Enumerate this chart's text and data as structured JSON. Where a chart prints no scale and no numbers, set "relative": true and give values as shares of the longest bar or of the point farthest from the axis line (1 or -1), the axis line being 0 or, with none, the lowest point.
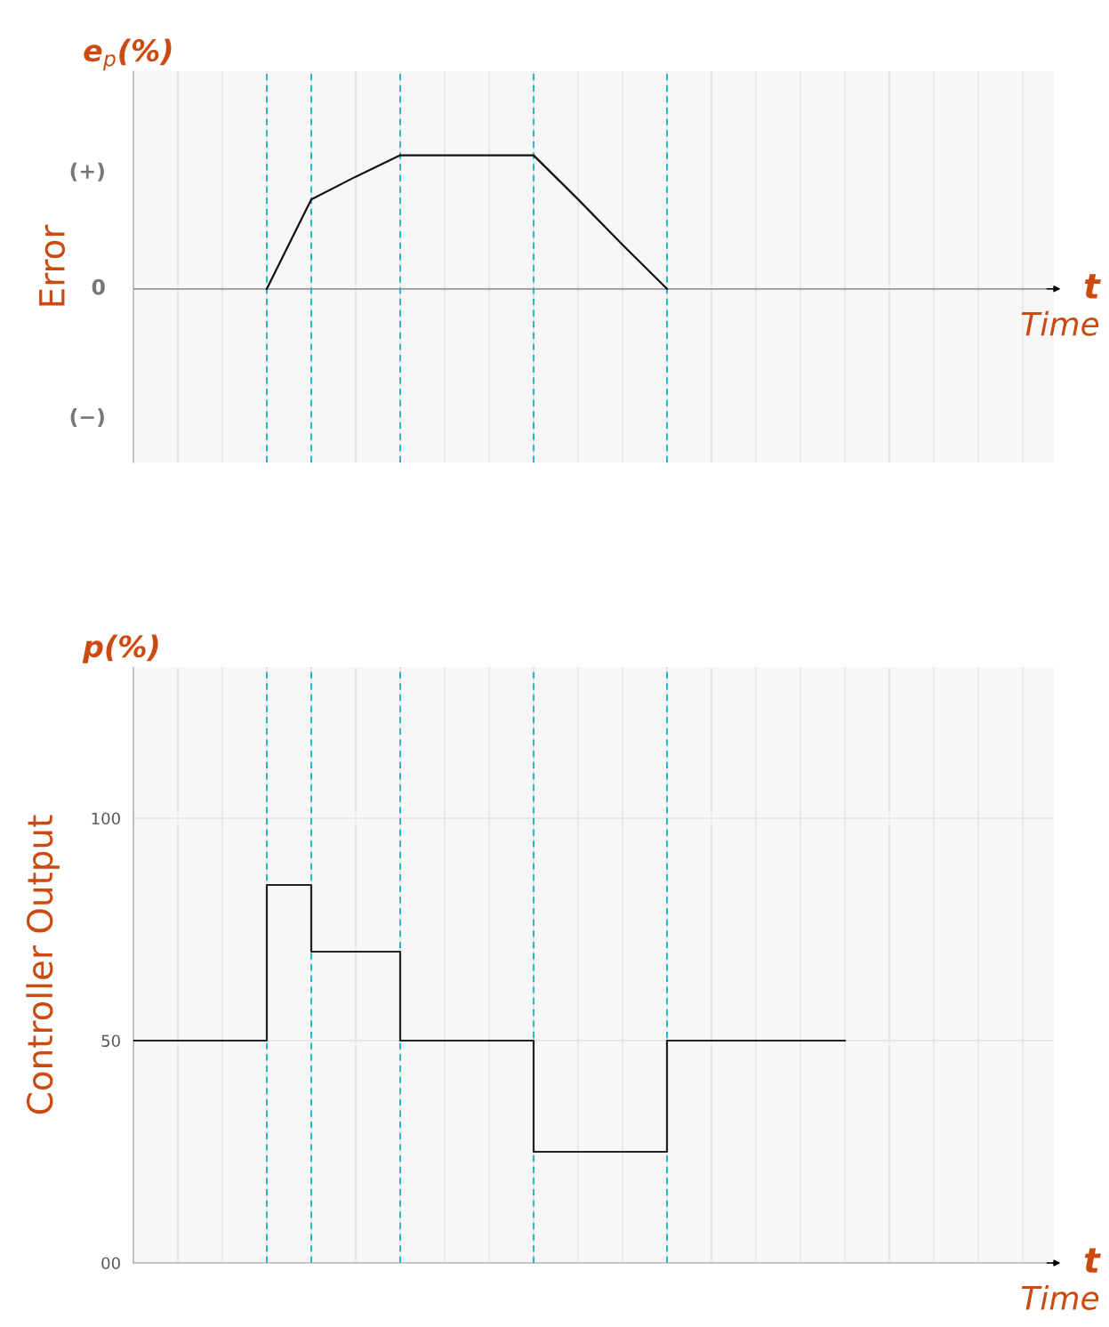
{
  "chart_data": [
    {
      "type": "line",
      "relative": true,
      "ylabel": "Error",
      "title": "e$_{p}$(%)",
      "xlabel": "Time",
      "annotations": [
        "t",
        "(+)",
        "0",
        "(−)"
      ],
      "categories": [
        null,
        null,
        null,
        null,
        null,
        null,
        null,
        null,
        null,
        null,
        null,
        null,
        null,
        null,
        null,
        null,
        null,
        null,
        null,
        null,
        null
      ],
      "series": [
        {
          "color": "#111111",
          "values": [
            null,
            null,
            null,
            0,
            0.67,
            0.84,
            1,
            1,
            1,
            1,
            0.67,
            0.33,
            0,
            null,
            null,
            null,
            null,
            null,
            null,
            null,
            null
          ]
        }
      ],
      "grid": true,
      "tick_labels": false
    },
    {
      "type": "step",
      "ylabel": "Controller Output",
      "title": "p(%)",
      "xlabel": "Time",
      "annotations": [
        "t"
      ],
      "categories": [
        null,
        null,
        null,
        null,
        null,
        null,
        null,
        null,
        null,
        null,
        null,
        null,
        null,
        null,
        null,
        null,
        null,
        null,
        null,
        null,
        null
      ],
      "series": [
        {
          "color": "#222222",
          "values": [
            50,
            50,
            50,
            85,
            70,
            70,
            50,
            50,
            50,
            25,
            25,
            25,
            50,
            50,
            50,
            50,
            50,
            null,
            null,
            null,
            null
          ]
        }
      ],
      "ylim": [
        0,
        134
      ],
      "yticks": [
        {
          "value": 0,
          "label": "00"
        },
        50,
        100
      ],
      "grid": true,
      "tick_labels": "y"
    }
  ]
}
